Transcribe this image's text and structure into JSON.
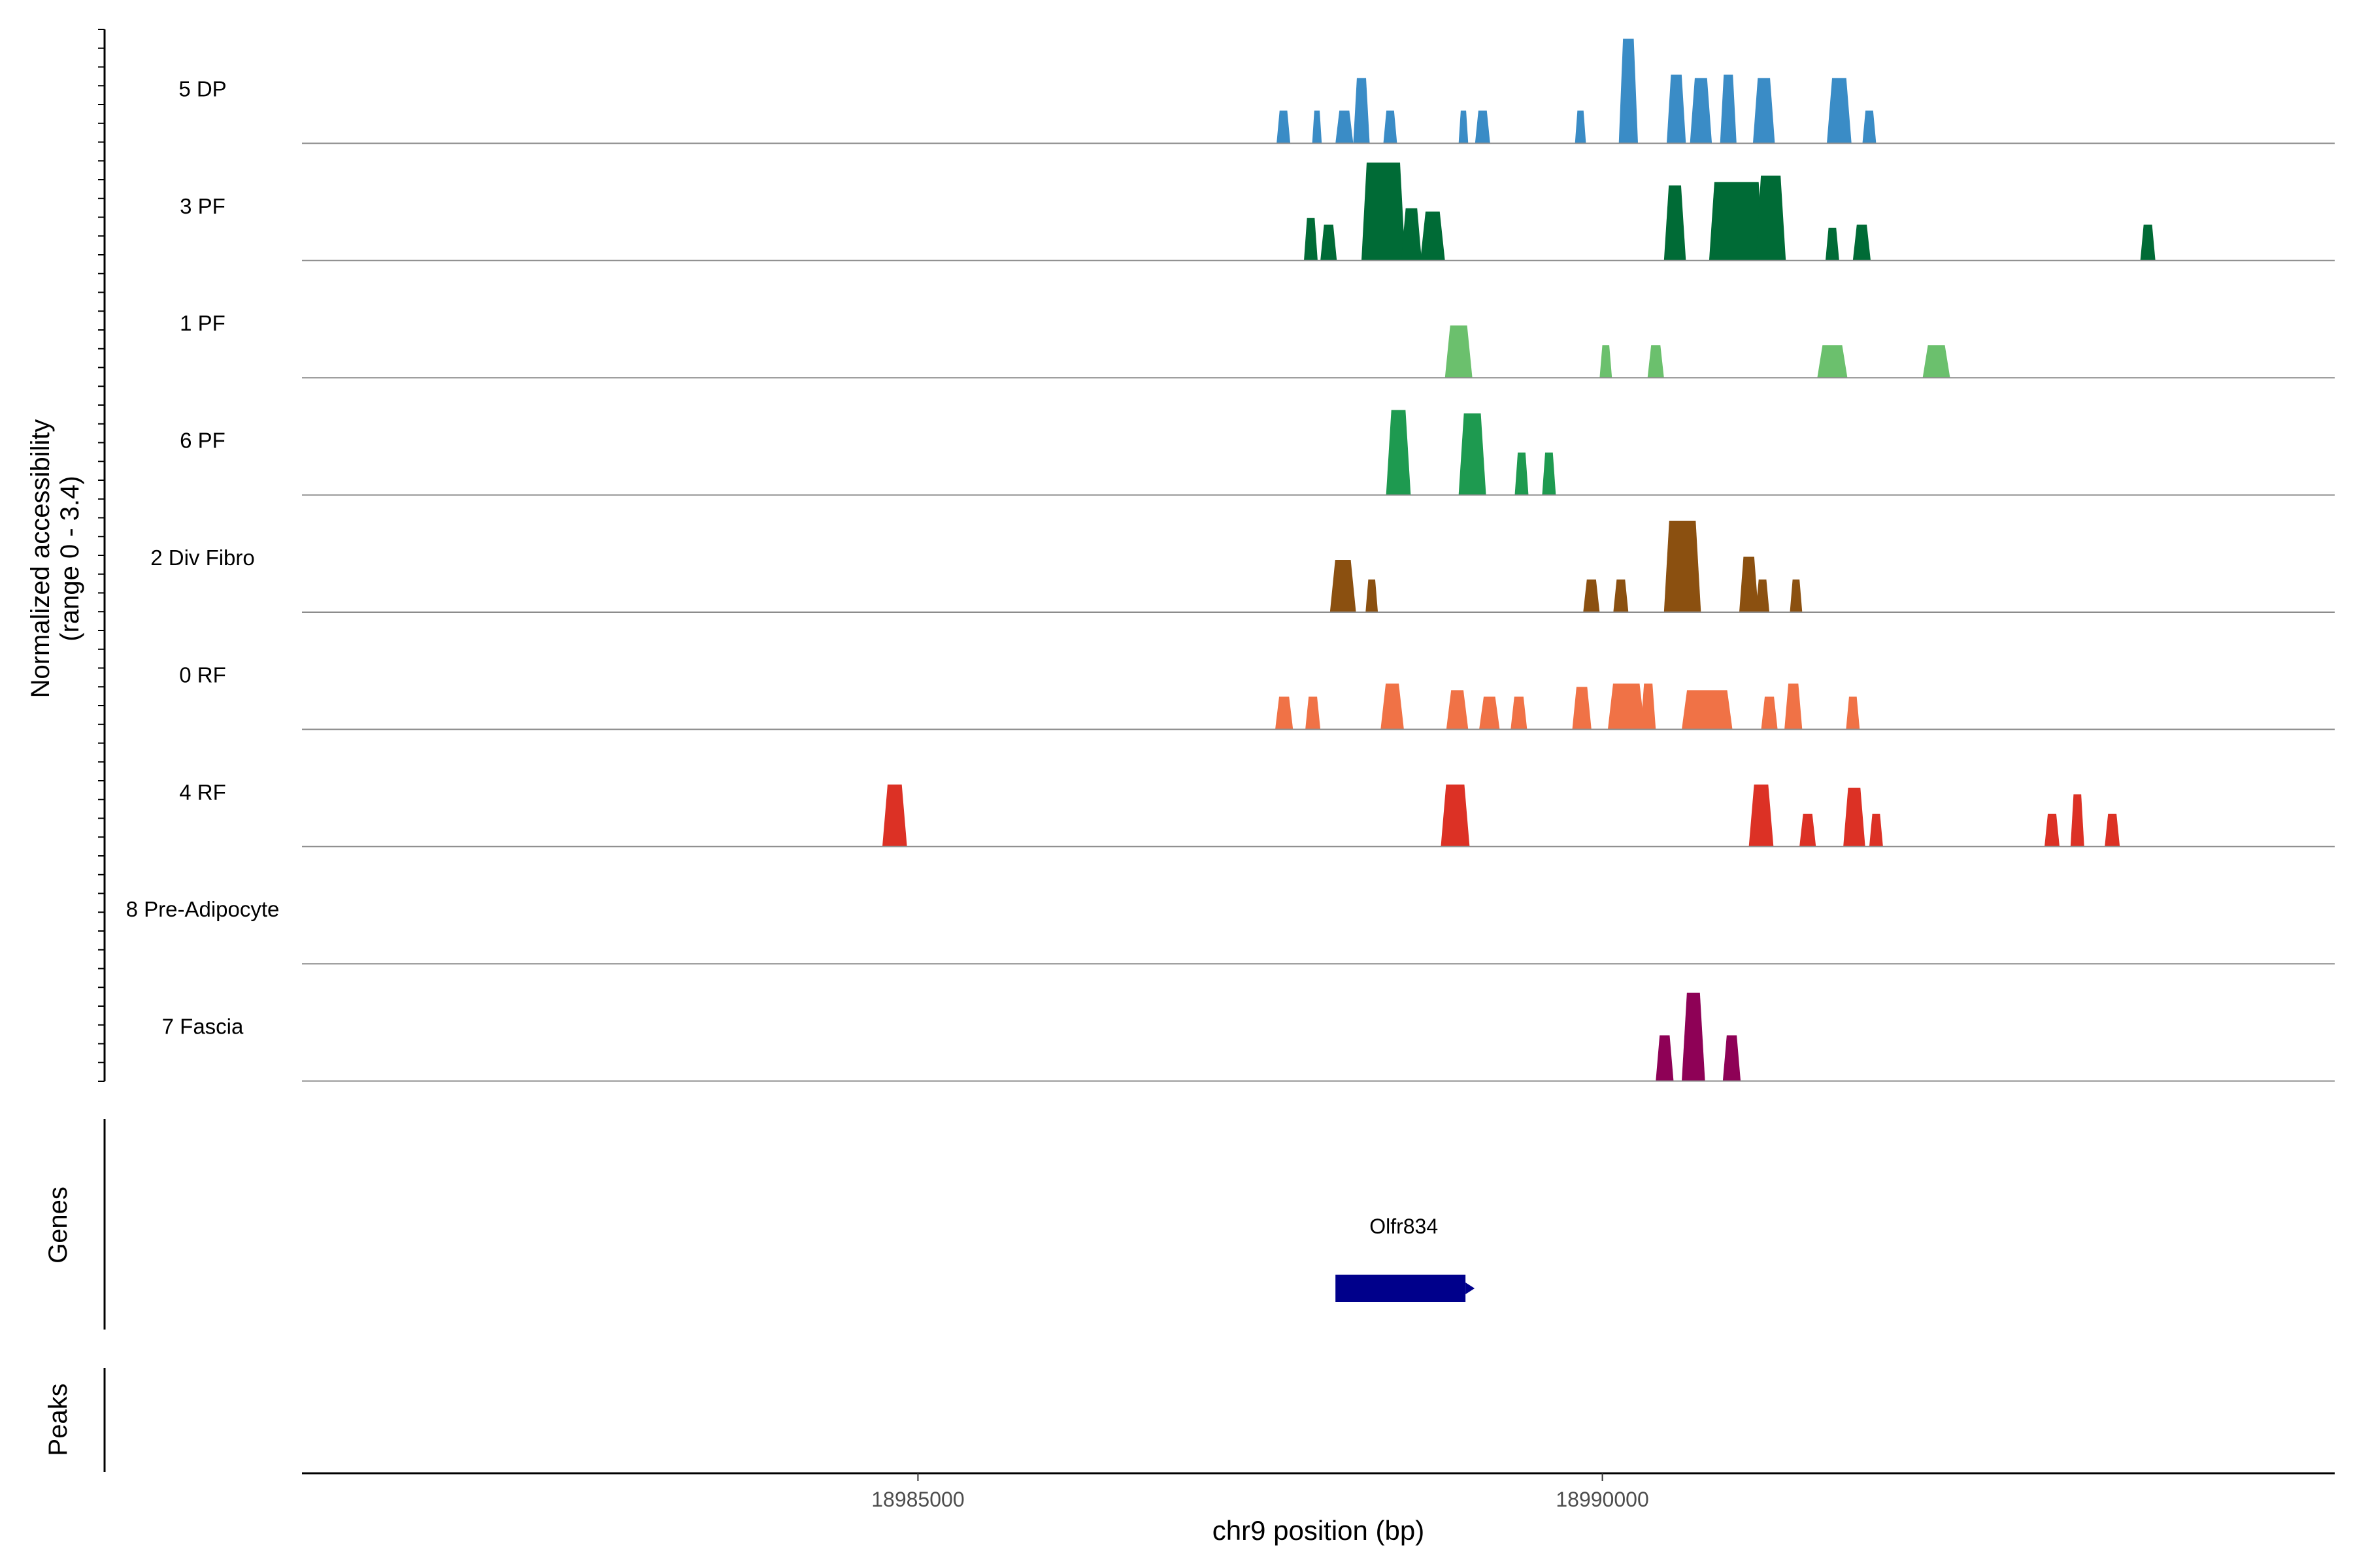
{
  "chart_data": {
    "type": "area",
    "title": "",
    "xlabel": "chr9 position (bp)",
    "ylabel_line1": "Normalized accessibility",
    "ylabel_line2": "(range 0 - 3.4)",
    "y_range": [
      0,
      3.4
    ],
    "x_range": [
      18980500,
      18995350
    ],
    "x_ticks": [
      18985000,
      18990000
    ],
    "x_tick_labels": [
      "18985000",
      "18990000"
    ],
    "genes_label": "Genes",
    "peaks_label": "Peaks",
    "genes": [
      {
        "name": "Olfr834",
        "start": 18988050,
        "end": 18989000,
        "strand": "+",
        "color": "#00008B"
      }
    ],
    "tracks": [
      {
        "name": "5 DP",
        "color": "#3A8CC6",
        "peaks": [
          [
            18987620,
            18987720,
            1.0
          ],
          [
            18987880,
            18987950,
            1.0
          ],
          [
            18988050,
            18988180,
            1.0
          ],
          [
            18988180,
            18988300,
            2.0
          ],
          [
            18988400,
            18988500,
            1.0
          ],
          [
            18988950,
            18989020,
            1.0
          ],
          [
            18989070,
            18989180,
            1.0
          ],
          [
            18989800,
            18989880,
            1.0
          ],
          [
            18990120,
            18990260,
            3.2
          ],
          [
            18990470,
            18990610,
            2.1
          ],
          [
            18990640,
            18990800,
            2.0
          ],
          [
            18990860,
            18990980,
            2.1
          ],
          [
            18991100,
            18991260,
            2.0
          ],
          [
            18991640,
            18991820,
            2.0
          ],
          [
            18991900,
            18992000,
            1.0
          ]
        ]
      },
      {
        "name": "3 PF",
        "color": "#006B36",
        "peaks": [
          [
            18987820,
            18987920,
            1.3
          ],
          [
            18987940,
            18988060,
            1.1
          ],
          [
            18988240,
            18988560,
            3.0
          ],
          [
            18988530,
            18988680,
            1.6
          ],
          [
            18988670,
            18988850,
            1.5
          ],
          [
            18990450,
            18990610,
            2.3
          ],
          [
            18990780,
            18991180,
            2.4
          ],
          [
            18991120,
            18991340,
            2.6
          ],
          [
            18991630,
            18991730,
            1.0
          ],
          [
            18991830,
            18991960,
            1.1
          ],
          [
            18993930,
            18994040,
            1.1
          ]
        ]
      },
      {
        "name": "1 PF",
        "color": "#6BC06D",
        "peaks": [
          [
            18988850,
            18989050,
            1.6
          ],
          [
            18989980,
            18990070,
            1.0
          ],
          [
            18990330,
            18990450,
            1.0
          ],
          [
            18991570,
            18991790,
            1.0
          ],
          [
            18992340,
            18992540,
            1.0
          ]
        ]
      },
      {
        "name": "6 PF",
        "color": "#1E9A50",
        "peaks": [
          [
            18988420,
            18988600,
            2.6
          ],
          [
            18988950,
            18989150,
            2.5
          ],
          [
            18989360,
            18989460,
            1.3
          ],
          [
            18989560,
            18989660,
            1.3
          ]
        ]
      },
      {
        "name": "2 Div Fibro",
        "color": "#8B5010",
        "peaks": [
          [
            18988010,
            18988200,
            1.6
          ],
          [
            18988270,
            18988360,
            1.0
          ],
          [
            18989860,
            18989980,
            1.0
          ],
          [
            18990080,
            18990190,
            1.0
          ],
          [
            18990450,
            18990720,
            2.8
          ],
          [
            18991000,
            18991140,
            1.7
          ],
          [
            18991120,
            18991220,
            1.0
          ],
          [
            18991370,
            18991460,
            1.0
          ]
        ]
      },
      {
        "name": "0 RF",
        "color": "#F07246",
        "peaks": [
          [
            18987610,
            18987740,
            1.0
          ],
          [
            18987830,
            18987940,
            1.0
          ],
          [
            18988380,
            18988550,
            1.4
          ],
          [
            18988860,
            18989020,
            1.2
          ],
          [
            18989100,
            18989250,
            1.0
          ],
          [
            18989330,
            18989450,
            1.0
          ],
          [
            18989780,
            18989920,
            1.3
          ],
          [
            18990040,
            18990310,
            1.4
          ],
          [
            18990280,
            18990390,
            1.4
          ],
          [
            18990580,
            18990950,
            1.2
          ],
          [
            18991160,
            18991280,
            1.0
          ],
          [
            18991330,
            18991460,
            1.4
          ],
          [
            18991780,
            18991880,
            1.0
          ]
        ]
      },
      {
        "name": "4 RF",
        "color": "#DC3125",
        "peaks": [
          [
            18984740,
            18984920,
            1.9
          ],
          [
            18988820,
            18989030,
            1.9
          ],
          [
            18991070,
            18991250,
            1.9
          ],
          [
            18991440,
            18991560,
            1.0
          ],
          [
            18991760,
            18991920,
            1.8
          ],
          [
            18991950,
            18992050,
            1.0
          ],
          [
            18993230,
            18993340,
            1.0
          ],
          [
            18993420,
            18993520,
            1.6
          ],
          [
            18993670,
            18993780,
            1.0
          ]
        ]
      },
      {
        "name": "8 Pre-Adipocyte",
        "color": "#A05A2C",
        "peaks": []
      },
      {
        "name": "7 Fascia",
        "color": "#8E0156",
        "peaks": [
          [
            18990390,
            18990520,
            1.4
          ],
          [
            18990580,
            18990750,
            2.7
          ],
          [
            18990880,
            18991010,
            1.4
          ]
        ]
      }
    ]
  }
}
